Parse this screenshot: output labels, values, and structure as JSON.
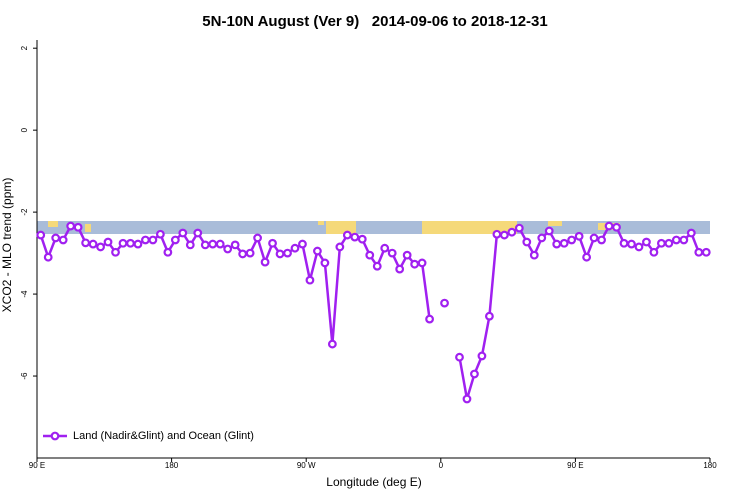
{
  "chart_data": {
    "type": "line",
    "title": "5N-10N August (Ver 9)   2014-09-06 to 2018-12-31",
    "xlabel": "Longitude (deg E)",
    "ylabel": "XCO2 - MLO trend (ppm)",
    "x": [
      92.5,
      97.5,
      102.5,
      107.5,
      112.5,
      117.5,
      122.5,
      127.5,
      132.5,
      137.5,
      142.5,
      147.5,
      152.5,
      157.5,
      162.5,
      167.5,
      172.5,
      177.5,
      182.5,
      187.5,
      192.5,
      197.5,
      202.5,
      207.5,
      212.5,
      217.5,
      222.5,
      227.5,
      232.5,
      237.5,
      242.5,
      247.5,
      252.5,
      257.5,
      262.5,
      267.5,
      272.5,
      277.5,
      282.5,
      287.5,
      292.5,
      297.5,
      302.5,
      307.5,
      312.5,
      317.5,
      322.5,
      327.5,
      332.5,
      337.5,
      342.5,
      347.5,
      352.5,
      357.5,
      362.5,
      367.5,
      372.5,
      377.5,
      382.5,
      387.5,
      392.5,
      397.5,
      402.5,
      407.5,
      412.5,
      417.5,
      422.5,
      427.5,
      432.5,
      437.5,
      442.5,
      447.5,
      452.5,
      457.5,
      462.5,
      467.5,
      472.5,
      477.5,
      482.5,
      487.5,
      492.5,
      497.5,
      502.5,
      507.5,
      512.5,
      517.5,
      522.5,
      527.5,
      532.5,
      537.5
    ],
    "series": [
      {
        "name": "Land (Nadir&Glint) and Ocean (Glint)",
        "color": "#a020f0",
        "values": [
          -2.56,
          -3.1,
          -2.63,
          -2.68,
          -2.34,
          -2.37,
          -2.75,
          -2.78,
          -2.85,
          -2.73,
          -2.98,
          -2.76,
          -2.76,
          -2.78,
          -2.68,
          -2.68,
          -2.54,
          -2.98,
          -2.68,
          -2.51,
          -2.8,
          -2.51,
          -2.8,
          -2.78,
          -2.78,
          -2.9,
          -2.8,
          -3.02,
          -3.0,
          -2.63,
          -3.22,
          -2.76,
          -3.02,
          -3.0,
          -2.88,
          -2.78,
          -3.66,
          -2.95,
          -3.24,
          -5.22,
          -2.85,
          -2.56,
          -2.61,
          -2.66,
          -3.05,
          -3.32,
          -2.88,
          -3.0,
          -3.39,
          -3.05,
          -3.27,
          -3.24,
          -4.61,
          null,
          -4.22,
          null,
          -5.54,
          -6.56,
          -5.95,
          -5.51,
          -4.54,
          -2.54,
          -2.56,
          -2.49,
          -2.39,
          -2.73,
          -3.05,
          -2.63,
          -2.46,
          -2.78,
          -2.76,
          -2.68,
          -2.59,
          -3.1,
          -2.63,
          -2.68,
          -2.34,
          -2.37,
          -2.76,
          -2.78,
          -2.85,
          -2.73,
          -2.98,
          -2.76,
          -2.76,
          -2.68,
          -2.68,
          -2.51,
          -2.98,
          -2.98
        ]
      }
    ],
    "xlim": [
      90,
      540
    ],
    "ylim": [
      -8,
      2.2
    ],
    "xticks": [
      {
        "value": 90,
        "label": "90 E"
      },
      {
        "value": 180,
        "label": "180"
      },
      {
        "value": 270,
        "label": "90 W"
      },
      {
        "value": 360,
        "label": "0"
      },
      {
        "value": 450,
        "label": "90 E"
      },
      {
        "value": 540,
        "label": "180"
      }
    ],
    "yticks": [
      -6,
      -4,
      -2,
      0,
      2
    ],
    "legend": "bottom-left"
  }
}
